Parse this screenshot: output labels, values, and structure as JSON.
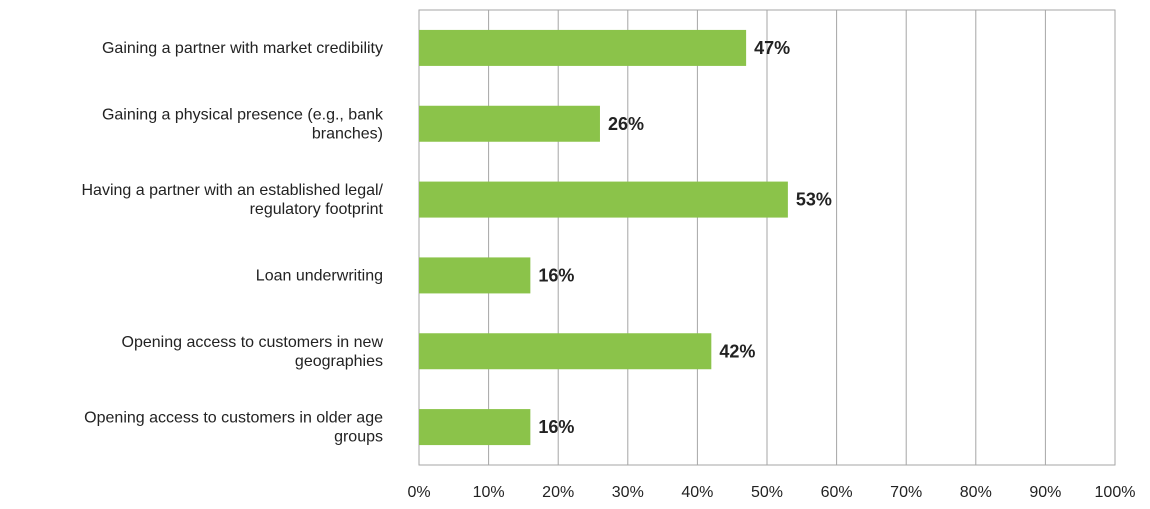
{
  "chart_data": {
    "type": "bar",
    "orientation": "horizontal",
    "title": "",
    "xlabel": "",
    "ylabel": "",
    "categories": [
      "Gaining a partner with market credibility",
      "Gaining a physical presence (e.g., bank branches)",
      "Having a partner with an established legal/ regulatory footprint",
      "Loan underwriting",
      "Opening access to customers in new geographies",
      "Opening access to customers in older age groups"
    ],
    "category_lines": [
      [
        "Gaining a partner with market credibility"
      ],
      [
        "Gaining a physical presence (e.g., bank",
        "branches)"
      ],
      [
        "Having a partner with an established legal/",
        "regulatory footprint"
      ],
      [
        "Loan underwriting"
      ],
      [
        "Opening access to customers in new",
        "geographies"
      ],
      [
        "Opening access to customers in older age",
        "groups"
      ]
    ],
    "values": [
      47,
      26,
      53,
      16,
      42,
      16
    ],
    "data_labels": [
      "47%",
      "26%",
      "53%",
      "16%",
      "42%",
      "16%"
    ],
    "xlim": [
      0,
      100
    ],
    "xticks": [
      0,
      10,
      20,
      30,
      40,
      50,
      60,
      70,
      80,
      90,
      100
    ],
    "xtick_labels": [
      "0%",
      "10%",
      "20%",
      "30%",
      "40%",
      "50%",
      "60%",
      "70%",
      "80%",
      "90%",
      "100%"
    ],
    "grid": true,
    "legend": "none",
    "bar_color": "#8bc34a",
    "grid_color": "#a6a6a6",
    "text_color": "#222222"
  }
}
